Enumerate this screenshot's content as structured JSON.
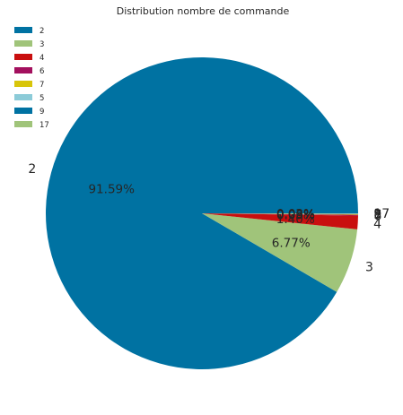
{
  "chart_data": {
    "type": "pie",
    "title": "Distribution nombre de commande",
    "categories": [
      "2",
      "3",
      "4",
      "6",
      "7",
      "5",
      "9",
      "17"
    ],
    "values": [
      91.59,
      6.77,
      1.4,
      0.09,
      0.06,
      0.03,
      0.03,
      0.03
    ],
    "percent_labels": [
      "91.59%",
      "6.77%",
      "1.40%",
      "0.09%",
      "0.06%",
      "0.03%",
      "0.03%",
      "0.03%"
    ],
    "colors": [
      "#0072a2",
      "#a0c47a",
      "#c90f0f",
      "#a3105e",
      "#d8c50a",
      "#8ccbd8",
      "#0072a2",
      "#a0c47a"
    ],
    "legend_placement": "top-left",
    "start_angle_deg": 0,
    "direction": "counterclockwise"
  }
}
